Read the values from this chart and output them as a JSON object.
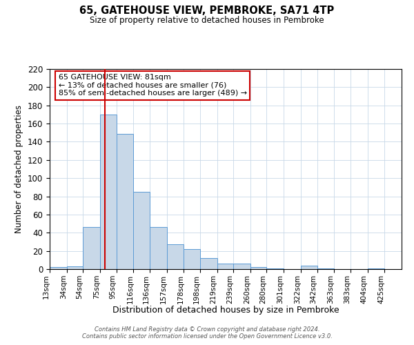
{
  "title": "65, GATEHOUSE VIEW, PEMBROKE, SA71 4TP",
  "subtitle": "Size of property relative to detached houses in Pembroke",
  "xlabel": "Distribution of detached houses by size in Pembroke",
  "ylabel": "Number of detached properties",
  "bin_labels": [
    "13sqm",
    "34sqm",
    "54sqm",
    "75sqm",
    "95sqm",
    "116sqm",
    "136sqm",
    "157sqm",
    "178sqm",
    "198sqm",
    "219sqm",
    "239sqm",
    "260sqm",
    "280sqm",
    "301sqm",
    "322sqm",
    "342sqm",
    "363sqm",
    "383sqm",
    "404sqm",
    "425sqm"
  ],
  "bar_heights": [
    2,
    3,
    46,
    170,
    149,
    85,
    46,
    27,
    22,
    12,
    6,
    6,
    2,
    1,
    0,
    4,
    1,
    0,
    0,
    1
  ],
  "bar_color": "#c8d8e8",
  "bar_edge_color": "#5b9bd5",
  "vline_x": 81,
  "vline_color": "#cc0000",
  "ylim": [
    0,
    220
  ],
  "yticks": [
    0,
    20,
    40,
    60,
    80,
    100,
    120,
    140,
    160,
    180,
    200,
    220
  ],
  "bin_edges": [
    13,
    34,
    54,
    75,
    95,
    116,
    136,
    157,
    178,
    198,
    219,
    239,
    260,
    280,
    301,
    322,
    342,
    363,
    383,
    404,
    425
  ],
  "annotation_text": "65 GATEHOUSE VIEW: 81sqm\n← 13% of detached houses are smaller (76)\n85% of semi-detached houses are larger (489) →",
  "annotation_box_color": "#ffffff",
  "annotation_box_edge_color": "#cc0000",
  "footer_text": "Contains HM Land Registry data © Crown copyright and database right 2024.\nContains public sector information licensed under the Open Government Licence v3.0.",
  "background_color": "#ffffff",
  "grid_color": "#c8d8e8"
}
